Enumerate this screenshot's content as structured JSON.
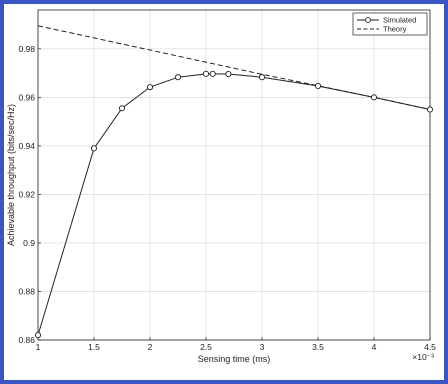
{
  "colors": {
    "border": "#3a55c4",
    "background": "#ffffff",
    "series": "#222222",
    "grid": "#d8d8d8"
  },
  "chart_data": {
    "type": "line",
    "xlabel": "Sensing time (ms)",
    "ylabel": "Achievable throughput (bits/sec/Hz)",
    "x_multiplier": "×10⁻³",
    "xlim": [
      1,
      4.5
    ],
    "ylim": [
      0.86,
      0.996
    ],
    "xticks": [
      1,
      1.5,
      2,
      2.5,
      3,
      3.5,
      4,
      4.5
    ],
    "xtick_labels": [
      "1",
      "1.5",
      "2",
      "2.5",
      "3",
      "3.5",
      "4",
      "4.5"
    ],
    "yticks": [
      0.86,
      0.88,
      0.9,
      0.92,
      0.94,
      0.96,
      0.98
    ],
    "ytick_labels": [
      "0.86",
      "0.88",
      "0.9",
      "0.92",
      "0.94",
      "0.96",
      "0.98"
    ],
    "grid": true,
    "legend_position": "top-right",
    "series": [
      {
        "name": "Simulated",
        "style": "solid-circle-markers",
        "x": [
          1,
          1.5,
          1.75,
          2,
          2.25,
          2.5,
          2.56,
          2.7,
          3,
          3.5,
          4,
          4.5
        ],
        "y": [
          0.862,
          0.939,
          0.9555,
          0.9642,
          0.9683,
          0.9697,
          0.9697,
          0.9696,
          0.9683,
          0.9647,
          0.96,
          0.955
        ]
      },
      {
        "name": "Theory",
        "style": "dashed",
        "x": [
          1,
          1.5,
          2,
          2.5,
          3,
          3.5,
          4,
          4.5
        ],
        "y": [
          0.9895,
          0.9845,
          0.9795,
          0.9745,
          0.9695,
          0.9648,
          0.96,
          0.955
        ]
      }
    ]
  }
}
